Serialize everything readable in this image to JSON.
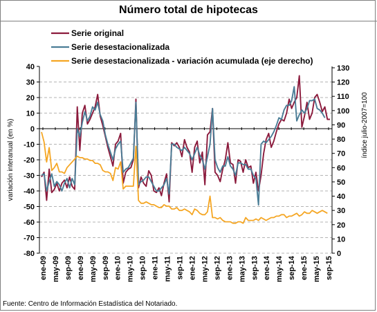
{
  "chart_data": {
    "type": "line",
    "title": "Número total de hipotecas",
    "ylabel": "variación interanual (en %)",
    "y2label": "índice julio-2007=100",
    "ylim": [
      -80,
      40
    ],
    "y2lim": [
      0,
      130
    ],
    "yticks": [
      40,
      30,
      20,
      10,
      0,
      -10,
      -20,
      -30,
      -40,
      -50,
      -60,
      -70,
      -80
    ],
    "y2ticks": [
      130,
      120,
      110,
      100,
      90,
      80,
      70,
      60,
      50,
      40,
      30,
      20,
      10,
      0
    ],
    "grid": true,
    "legend_position": "top-left",
    "source": "Fuente: Centro de Información Estadística del Notariado.",
    "xticks": [
      "ene-09",
      "may-09",
      "sep-09",
      "ene-09",
      "may-09",
      "sep-09",
      "ene-10",
      "may-10",
      "sep-10",
      "ene-11",
      "may-11",
      "sep-11",
      "ene-12",
      "may-12",
      "sep-12",
      "ene-13",
      "may-13",
      "sep-13",
      "ene-14",
      "may-14",
      "sep-14",
      "ene-15",
      "may-15",
      "sep-15"
    ],
    "series": [
      {
        "name": "Serie original",
        "axis": "left",
        "color": "#8b1a3c",
        "values": [
          -31,
          -28,
          -46,
          -26,
          -41,
          -39,
          -35,
          -40,
          -35,
          -33,
          -38,
          -31,
          -37,
          -39,
          14,
          -14,
          10,
          15,
          3,
          6,
          10,
          14,
          22,
          8,
          2,
          -5,
          -12,
          -18,
          -24,
          -10,
          -8,
          -3,
          -35,
          -28,
          -26,
          -25,
          -20,
          19,
          -38,
          -31,
          -35,
          -37,
          -27,
          -30,
          -40,
          -41,
          -38,
          -43,
          -35,
          -29,
          -47,
          -9,
          -11,
          -9,
          -12,
          -18,
          -7,
          -12,
          -15,
          -28,
          -12,
          -8,
          -22,
          -15,
          -36,
          -4,
          -2,
          13,
          -28,
          -30,
          -34,
          -26,
          -20,
          -9,
          -22,
          -23,
          -35,
          -20,
          -21,
          -28,
          -20,
          -25,
          -24,
          -35,
          -28,
          -40,
          -30,
          -16,
          -7,
          -3,
          -12,
          -8,
          -2,
          3,
          6,
          5,
          10,
          19,
          13,
          17,
          20,
          34,
          1,
          8,
          17,
          6,
          10,
          20,
          22,
          17,
          11,
          14,
          6,
          6
        ]
      },
      {
        "name": "Serie desestacionalizada",
        "axis": "left",
        "color": "#4a7d96",
        "values": [
          -30,
          -29,
          -40,
          -34,
          -29,
          -37,
          -34,
          -36,
          -40,
          -35,
          -32,
          -38,
          -32,
          -36,
          0,
          -5,
          4,
          11,
          5,
          8,
          14,
          12,
          17,
          9,
          5,
          -4,
          -10,
          -15,
          -20,
          -13,
          -10,
          -8,
          -28,
          -26,
          -25,
          -22,
          -19,
          17,
          -36,
          -34,
          -33,
          -31,
          -31,
          -34,
          -37,
          -40,
          -40,
          -38,
          -36,
          -32,
          -42,
          -10,
          -10,
          -12,
          -13,
          -14,
          -12,
          -14,
          -16,
          -20,
          -16,
          -12,
          -17,
          -20,
          -26,
          -18,
          -10,
          13,
          -20,
          -25,
          -28,
          -24,
          -24,
          -18,
          -24,
          -26,
          -30,
          -22,
          -22,
          -23,
          -23,
          -26,
          -26,
          -30,
          -32,
          -49,
          -10,
          -8,
          -9,
          -7,
          -5,
          -2,
          2,
          7,
          6,
          12,
          15,
          15,
          18,
          27,
          5,
          9,
          12,
          10,
          13,
          18,
          18,
          19,
          13,
          12,
          10,
          7
        ]
      },
      {
        "name": "Serie desestacionalizada - variación acumulada (eje derecho)",
        "axis": "right",
        "color": "#f5a623",
        "values": [
          85,
          78,
          64,
          74,
          58,
          60,
          63,
          57,
          57,
          56,
          60,
          62,
          64,
          66,
          68,
          67,
          67,
          66,
          66,
          65,
          65,
          63,
          63,
          62,
          58,
          57,
          57,
          56,
          51,
          60,
          59,
          64,
          45,
          47,
          47,
          47,
          47,
          75,
          37,
          35,
          35,
          36,
          35,
          34,
          34,
          33,
          32,
          32,
          34,
          33,
          33,
          31,
          31,
          32,
          30,
          30,
          31,
          30,
          29,
          27,
          31,
          30,
          28,
          27,
          27,
          29,
          40,
          25,
          25,
          24,
          25,
          23,
          22,
          22,
          22,
          21,
          21,
          22,
          22,
          21,
          25,
          23,
          23,
          23,
          24,
          23,
          25,
          24,
          23,
          24,
          25,
          25,
          26,
          26,
          27,
          27,
          25,
          26,
          26,
          27,
          28,
          26,
          27,
          29,
          28,
          28,
          30,
          29,
          28,
          29,
          30,
          29,
          28
        ]
      }
    ]
  }
}
